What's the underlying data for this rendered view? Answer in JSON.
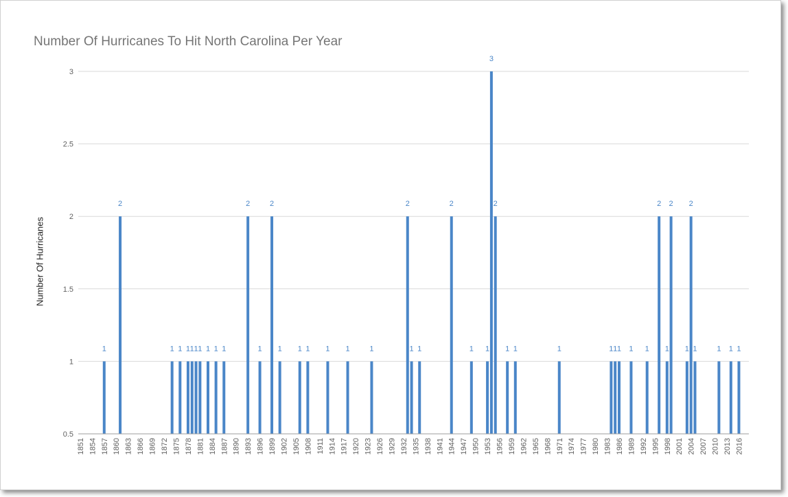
{
  "chart_data": {
    "type": "bar",
    "title": "Number Of Hurricanes To Hit North Carolina Per Year",
    "xlabel": "",
    "ylabel": "Number Of Hurricanes",
    "ylim": [
      0.5,
      3
    ],
    "yticks": [
      "0.5",
      "1",
      "1.5",
      "2",
      "2.5",
      "3"
    ],
    "xlim": [
      1851,
      2018
    ],
    "xticks": [
      "1851",
      "1854",
      "1857",
      "1860",
      "1863",
      "1866",
      "1869",
      "1872",
      "1875",
      "1878",
      "1881",
      "1884",
      "1887",
      "1890",
      "1893",
      "1896",
      "1899",
      "1902",
      "1905",
      "1908",
      "1911",
      "1914",
      "1917",
      "1920",
      "1923",
      "1926",
      "1929",
      "1932",
      "1935",
      "1938",
      "1941",
      "1944",
      "1947",
      "1950",
      "1953",
      "1956",
      "1959",
      "1962",
      "1965",
      "1968",
      "1971",
      "1974",
      "1977",
      "1980",
      "1983",
      "1986",
      "1989",
      "1992",
      "1995",
      "1998",
      "2001",
      "2004",
      "2007",
      "2010",
      "2013",
      "2016"
    ],
    "grid": true,
    "bar_color": "#4a86c8",
    "points": [
      {
        "x": 1857,
        "y": 1,
        "label": "1"
      },
      {
        "x": 1861,
        "y": 2,
        "label": "2"
      },
      {
        "x": 1874,
        "y": 1,
        "label": "1"
      },
      {
        "x": 1876,
        "y": 1,
        "label": "1"
      },
      {
        "x": 1878,
        "y": 1,
        "label": "1"
      },
      {
        "x": 1879,
        "y": 1,
        "label": "1"
      },
      {
        "x": 1880,
        "y": 1,
        "label": "1"
      },
      {
        "x": 1881,
        "y": 1,
        "label": "1"
      },
      {
        "x": 1883,
        "y": 1,
        "label": "1"
      },
      {
        "x": 1885,
        "y": 1,
        "label": "1"
      },
      {
        "x": 1887,
        "y": 1,
        "label": "1"
      },
      {
        "x": 1893,
        "y": 2,
        "label": "2"
      },
      {
        "x": 1896,
        "y": 1,
        "label": "1"
      },
      {
        "x": 1899,
        "y": 2,
        "label": "2"
      },
      {
        "x": 1901,
        "y": 1,
        "label": "1"
      },
      {
        "x": 1906,
        "y": 1,
        "label": "1"
      },
      {
        "x": 1908,
        "y": 1,
        "label": "1"
      },
      {
        "x": 1913,
        "y": 1,
        "label": "1"
      },
      {
        "x": 1918,
        "y": 1,
        "label": "1"
      },
      {
        "x": 1924,
        "y": 1,
        "label": "1"
      },
      {
        "x": 1933,
        "y": 2,
        "label": "2"
      },
      {
        "x": 1934,
        "y": 1,
        "label": "1"
      },
      {
        "x": 1936,
        "y": 1,
        "label": "1"
      },
      {
        "x": 1944,
        "y": 2,
        "label": "2"
      },
      {
        "x": 1949,
        "y": 1,
        "label": "1"
      },
      {
        "x": 1953,
        "y": 1,
        "label": "1"
      },
      {
        "x": 1954,
        "y": 3,
        "label": "3"
      },
      {
        "x": 1955,
        "y": 2,
        "label": "2"
      },
      {
        "x": 1958,
        "y": 1,
        "label": "1"
      },
      {
        "x": 1960,
        "y": 1,
        "label": "1"
      },
      {
        "x": 1971,
        "y": 1,
        "label": "1"
      },
      {
        "x": 1984,
        "y": 1,
        "label": "1"
      },
      {
        "x": 1985,
        "y": 1,
        "label": "1"
      },
      {
        "x": 1986,
        "y": 1,
        "label": "1"
      },
      {
        "x": 1989,
        "y": 1,
        "label": "1"
      },
      {
        "x": 1993,
        "y": 1,
        "label": "1"
      },
      {
        "x": 1996,
        "y": 2,
        "label": "2"
      },
      {
        "x": 1998,
        "y": 1,
        "label": "1"
      },
      {
        "x": 1999,
        "y": 2,
        "label": "2"
      },
      {
        "x": 2003,
        "y": 1,
        "label": "1"
      },
      {
        "x": 2004,
        "y": 2,
        "label": "2"
      },
      {
        "x": 2005,
        "y": 1,
        "label": "1"
      },
      {
        "x": 2011,
        "y": 1,
        "label": "1"
      },
      {
        "x": 2014,
        "y": 1,
        "label": "1"
      },
      {
        "x": 2016,
        "y": 1,
        "label": "1"
      }
    ]
  }
}
